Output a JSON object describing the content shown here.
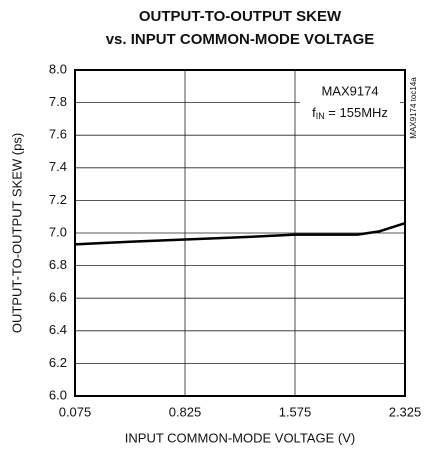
{
  "chart_data": {
    "type": "line",
    "title": [
      "OUTPUT-TO-OUTPUT SKEW",
      "vs. INPUT COMMON-MODE VOLTAGE"
    ],
    "x_label": "INPUT COMMON-MODE VOLTAGE (V)",
    "y_label": "OUTPUT-TO-OUTPUT SKEW (ps)",
    "annotations": {
      "part": "MAX9174",
      "freq": {
        "symbol": "f",
        "sub": "IN",
        "rest": " = 155MHz"
      },
      "side": "MAX9174 toc14a"
    },
    "x": [
      0.075,
      0.3,
      0.55,
      0.825,
      1.1,
      1.35,
      1.575,
      1.8,
      2.0,
      2.15,
      2.325
    ],
    "series": [
      {
        "color": "#000000",
        "values": [
          6.93,
          6.94,
          6.95,
          6.96,
          6.97,
          6.98,
          6.99,
          6.99,
          6.99,
          7.01,
          7.06
        ]
      }
    ],
    "xlim": [
      0.075,
      2.325
    ],
    "xticks": [
      0.075,
      0.825,
      1.575,
      2.325
    ],
    "ylim": [
      6.0,
      8.0
    ],
    "yticks": [
      {
        "value": 6.0,
        "label": "6.0"
      },
      6.2,
      6.4,
      6.6,
      6.8,
      {
        "value": 7.0,
        "label": "7.0"
      },
      7.2,
      7.4,
      7.6,
      7.8,
      {
        "value": 8.0,
        "label": "8.0"
      }
    ],
    "grid": true
  }
}
